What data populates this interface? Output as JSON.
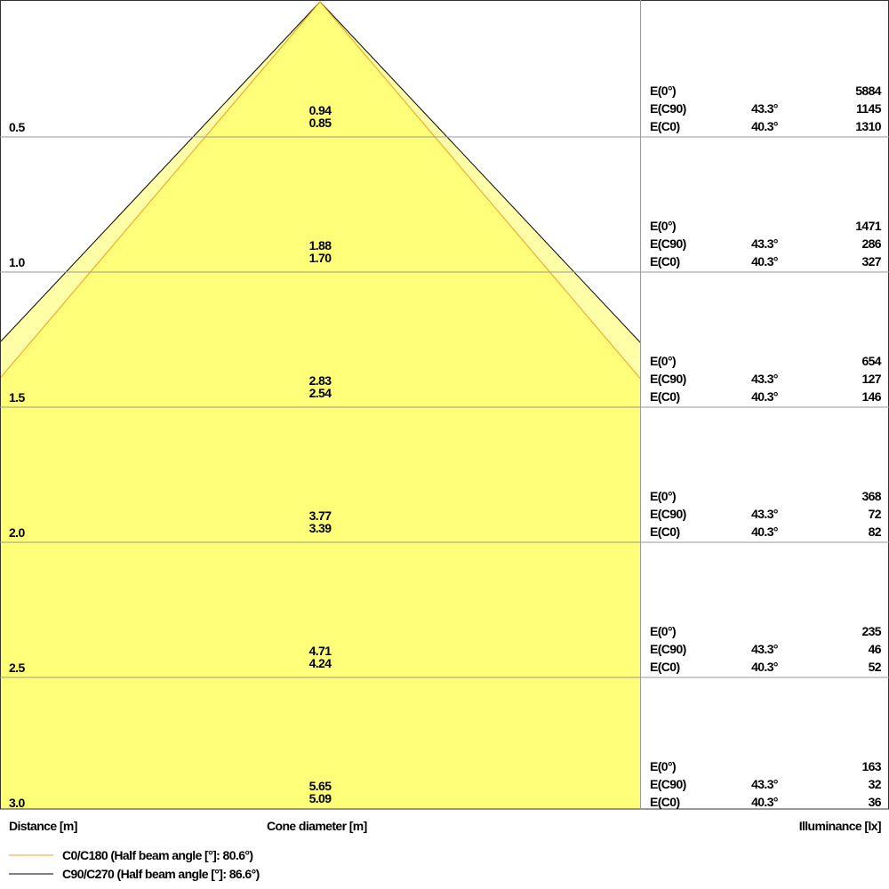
{
  "chart_data": {
    "type": "cone-diagram",
    "xlabel_distance": "Distance [m]",
    "xlabel_cone": "Cone diameter [m]",
    "xlabel_illuminance": "Illuminance [lx]",
    "distances": [
      "0.5",
      "1.0",
      "1.5",
      "2.0",
      "2.5",
      "3.0"
    ],
    "distance_values": [
      0.5,
      1.0,
      1.5,
      2.0,
      2.5,
      3.0
    ],
    "series": [
      {
        "name": "C90/C270 (Half beam angle [°]: 86.6°)",
        "color": "#000000",
        "fill": "#ffffa8",
        "diameters": [
          "0.94",
          "1.88",
          "2.83",
          "3.77",
          "4.71",
          "5.65"
        ]
      },
      {
        "name": "C0/C180 (Half beam angle [°]: 80.6°)",
        "color": "#f0a020",
        "fill": "#ffff7a",
        "diameters": [
          "0.85",
          "1.70",
          "2.54",
          "3.39",
          "4.24",
          "5.09"
        ]
      }
    ],
    "illuminance": [
      {
        "e0": "5884",
        "c90_angle": "43.3°",
        "c90": "1145",
        "c0_angle": "40.3°",
        "c0": "1310"
      },
      {
        "e0": "1471",
        "c90_angle": "43.3°",
        "c90": "286",
        "c0_angle": "40.3°",
        "c0": "327"
      },
      {
        "e0": "654",
        "c90_angle": "43.3°",
        "c90": "127",
        "c0_angle": "40.3°",
        "c0": "146"
      },
      {
        "e0": "368",
        "c90_angle": "43.3°",
        "c90": "72",
        "c0_angle": "40.3°",
        "c0": "82"
      },
      {
        "e0": "235",
        "c90_angle": "43.3°",
        "c90": "46",
        "c0_angle": "40.3°",
        "c0": "52"
      },
      {
        "e0": "163",
        "c90_angle": "43.3°",
        "c90": "32",
        "c0_angle": "40.3°",
        "c0": "36"
      }
    ],
    "row_labels": {
      "e0": "E(0°)",
      "c90": "E(C90)",
      "c0": "E(C0)"
    },
    "grid": true
  }
}
